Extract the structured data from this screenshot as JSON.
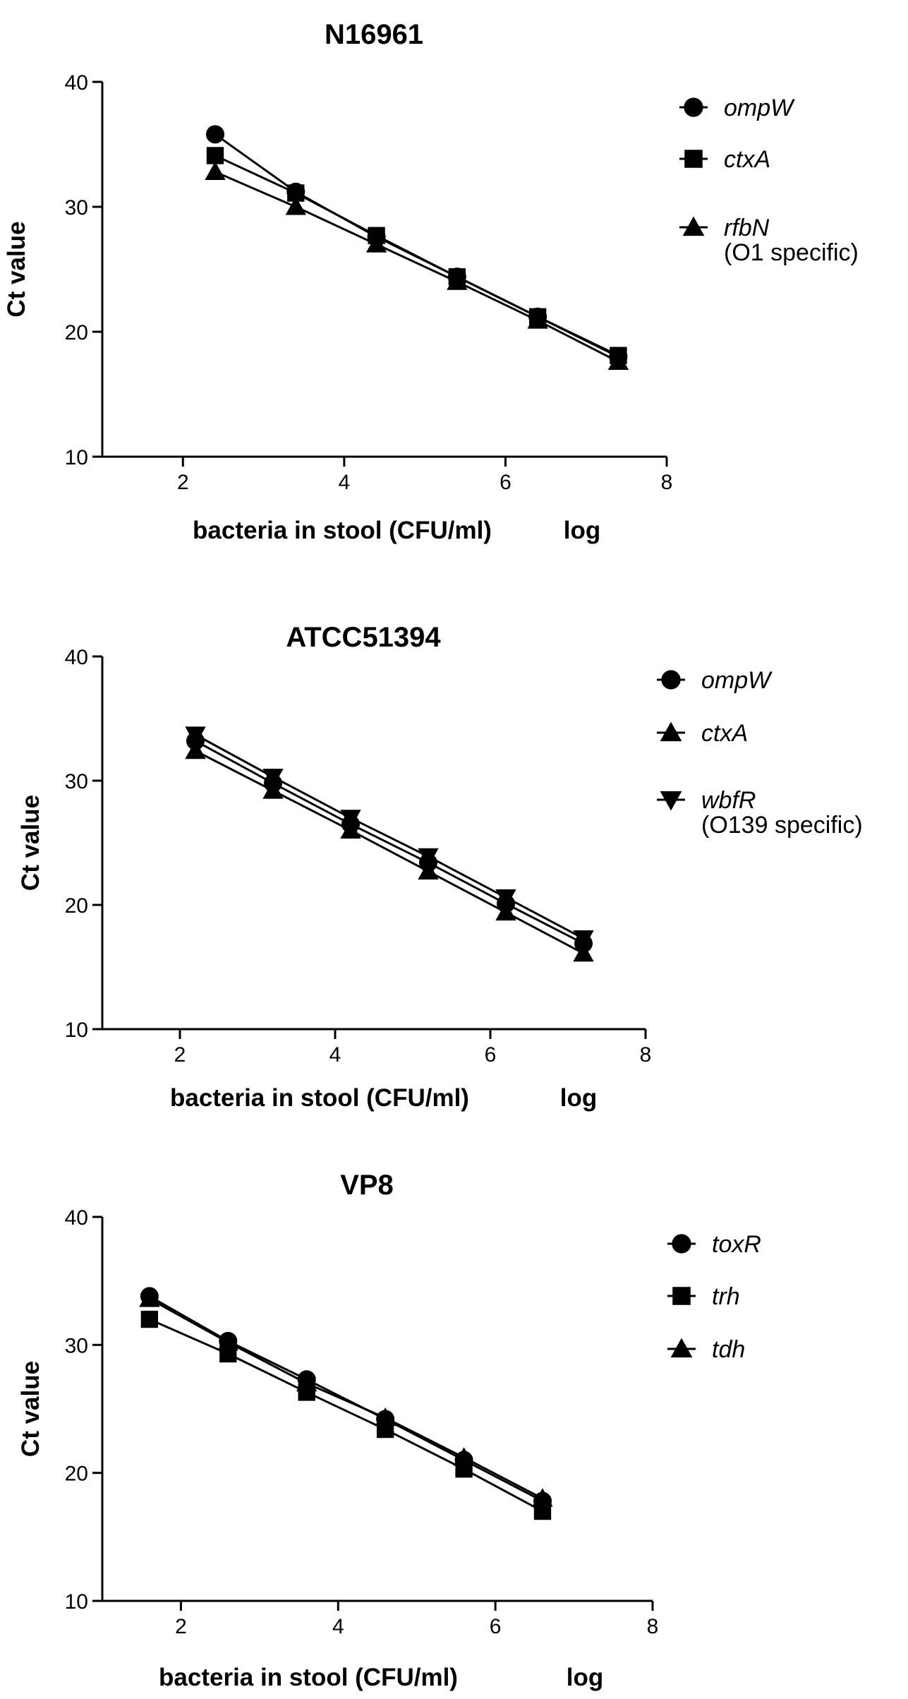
{
  "chart_data": [
    {
      "type": "line",
      "title": "N16961",
      "xlabel": "bacteria in stool (CFU/ml)",
      "xlabel_suffix": "log",
      "ylabel": "Ct value",
      "xlim": [
        1,
        8
      ],
      "ylim": [
        10,
        40
      ],
      "xticks": [
        2,
        4,
        6,
        8
      ],
      "yticks": [
        10,
        20,
        30,
        40
      ],
      "x": [
        2.4,
        3.4,
        4.4,
        5.4,
        6.4,
        7.4
      ],
      "series": [
        {
          "name": "ompW",
          "marker": "circle",
          "values": [
            35.8,
            31.2,
            27.6,
            24.4,
            21.2,
            18.0
          ]
        },
        {
          "name": "ctxA",
          "marker": "square",
          "values": [
            34.1,
            31.1,
            27.7,
            24.4,
            21.2,
            18.1
          ]
        },
        {
          "name": "rfbN",
          "note": "(O1 specific)",
          "marker": "triangle-up",
          "values": [
            32.8,
            30.0,
            27.0,
            24.0,
            20.9,
            17.6
          ]
        }
      ],
      "legend": "right"
    },
    {
      "type": "line",
      "title": "ATCC51394",
      "xlabel": "bacteria in stool (CFU/ml)",
      "xlabel_suffix": "log",
      "ylabel": "Ct value",
      "xlim": [
        1,
        8
      ],
      "ylim": [
        10,
        40
      ],
      "xticks": [
        2,
        4,
        6,
        8
      ],
      "yticks": [
        10,
        20,
        30,
        40
      ],
      "x": [
        2.2,
        3.2,
        4.2,
        5.2,
        6.2,
        7.2
      ],
      "series": [
        {
          "name": "ompW",
          "marker": "circle",
          "values": [
            33.2,
            29.8,
            26.5,
            23.4,
            20.1,
            16.9
          ]
        },
        {
          "name": "ctxA",
          "marker": "triangle-up",
          "values": [
            32.4,
            29.2,
            26.0,
            22.7,
            19.4,
            16.1
          ]
        },
        {
          "name": "wbfR",
          "note": "(O139 specific)",
          "marker": "triangle-down",
          "values": [
            33.7,
            30.3,
            27.0,
            23.9,
            20.6,
            17.3
          ]
        }
      ],
      "legend": "right"
    },
    {
      "type": "line",
      "title": "VP8",
      "xlabel": "bacteria in stool (CFU/ml)",
      "xlabel_suffix": "log",
      "ylabel": "Ct value",
      "xlim": [
        1,
        8
      ],
      "ylim": [
        10,
        40
      ],
      "xticks": [
        2,
        4,
        6,
        8
      ],
      "yticks": [
        10,
        20,
        30,
        40
      ],
      "x": [
        1.6,
        2.6,
        3.6,
        4.6,
        5.6,
        6.6
      ],
      "series": [
        {
          "name": "toxR",
          "marker": "circle",
          "values": [
            33.8,
            30.3,
            27.3,
            24.2,
            21.0,
            17.8
          ]
        },
        {
          "name": "trh",
          "marker": "square",
          "values": [
            32.0,
            29.3,
            26.3,
            23.4,
            20.3,
            17.0
          ]
        },
        {
          "name": "tdh",
          "marker": "triangle-up",
          "values": [
            33.6,
            30.2,
            27.0,
            24.3,
            21.2,
            18.0
          ]
        }
      ],
      "legend": "right"
    }
  ]
}
